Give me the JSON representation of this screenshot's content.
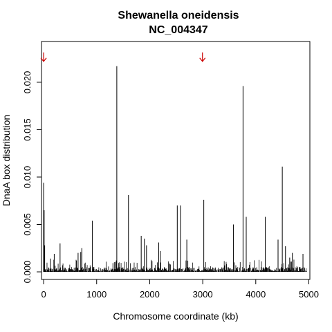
{
  "chart_data": {
    "type": "bar",
    "title": "Shewanella oneidensis",
    "subtitle": "NC_004347",
    "xlabel": "Chromosome coordinate (kb)",
    "ylabel": "DnaA box distribution",
    "xlim": [
      -40,
      5020
    ],
    "ylim": [
      -0.0008,
      0.0243
    ],
    "x_ticks": [
      0,
      1000,
      2000,
      3000,
      4000,
      5000
    ],
    "x_tick_labels": [
      "0",
      "1000",
      "2000",
      "3000",
      "4000",
      "5000"
    ],
    "y_ticks": [
      0.0,
      0.005,
      0.01,
      0.015,
      0.02
    ],
    "y_tick_labels": [
      "0.000",
      "0.005",
      "0.010",
      "0.015",
      "0.020"
    ],
    "bar_color": "#000000",
    "marker_color": "#cc0000",
    "markers": [
      {
        "x": 0,
        "y": 0.0222
      },
      {
        "x": 2995,
        "y": 0.0222
      }
    ],
    "x": [
      0,
      10,
      20,
      130,
      200,
      310,
      650,
      700,
      720,
      920,
      1380,
      1600,
      1840,
      1900,
      1940,
      2170,
      2200,
      2520,
      2580,
      2700,
      3020,
      3580,
      3760,
      3820,
      4180,
      4420,
      4500,
      4560,
      4640,
      4690,
      4890
    ],
    "values": [
      0.0094,
      0.0065,
      0.0028,
      0.0014,
      0.0019,
      0.003,
      0.002,
      0.0021,
      0.0025,
      0.0054,
      0.0217,
      0.0081,
      0.0038,
      0.0035,
      0.0028,
      0.0031,
      0.0022,
      0.007,
      0.007,
      0.0034,
      0.0076,
      0.005,
      0.0196,
      0.0058,
      0.0058,
      0.0034,
      0.0111,
      0.0027,
      0.0015,
      0.002,
      0.0019
    ]
  }
}
